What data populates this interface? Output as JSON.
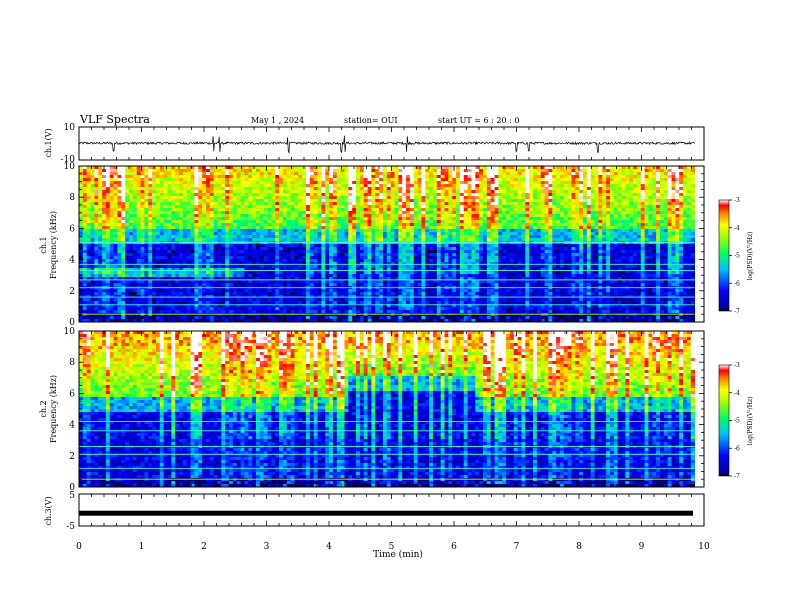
{
  "header": {
    "title": "VLF Spectra",
    "date": "May 1 , 2024",
    "station": "station= OUI",
    "start": "start  UT =  6 : 20 : 0"
  },
  "chart_data": [
    {
      "type": "line",
      "panel": "ch1-waveform",
      "ylabel": "ch.1(V)",
      "ylim": [
        -10,
        10
      ],
      "yticks": [
        "10",
        "-10"
      ],
      "xlim": [
        0,
        10
      ],
      "note": "noisy waveform around ~0 V with sparse spikes"
    },
    {
      "type": "heatmap",
      "panel": "ch1-spectrogram",
      "ylabel_line1": "ch.1",
      "ylabel_line2": "Frequency (kHz)",
      "ylim": [
        0,
        10
      ],
      "yticks": [
        "0",
        "2",
        "4",
        "6",
        "8",
        "10"
      ],
      "xlim": [
        0,
        10
      ],
      "colorbar": {
        "label": "log(PSD)(V²/Hz)",
        "ticks": [
          "-3",
          "-4",
          "-5",
          "-6",
          "-7"
        ],
        "range": [
          -7,
          -3
        ]
      }
    },
    {
      "type": "heatmap",
      "panel": "ch2-spectrogram",
      "ylabel_line1": "ch.2",
      "ylabel_line2": "Frequency (kHz)",
      "ylim": [
        0,
        10
      ],
      "yticks": [
        "0",
        "2",
        "4",
        "6",
        "8",
        "10"
      ],
      "xlim": [
        0,
        10
      ],
      "colorbar": {
        "label": "log(PSD)(V²/Hz)",
        "ticks": [
          "-3",
          "-4",
          "-5",
          "-6",
          "-7"
        ],
        "range": [
          -7,
          -3
        ]
      }
    },
    {
      "type": "line",
      "panel": "ch3-waveform",
      "ylabel": "ch.3(V)",
      "ylim": [
        -5,
        5
      ],
      "yticks": [
        "5",
        "-5"
      ],
      "xlim": [
        0,
        10
      ],
      "note": "flat thick trace near -1 V"
    }
  ],
  "xaxis": {
    "label": "Time (min)",
    "ticks": [
      "0",
      "1",
      "2",
      "3",
      "4",
      "5",
      "6",
      "7",
      "8",
      "9",
      "10"
    ]
  }
}
